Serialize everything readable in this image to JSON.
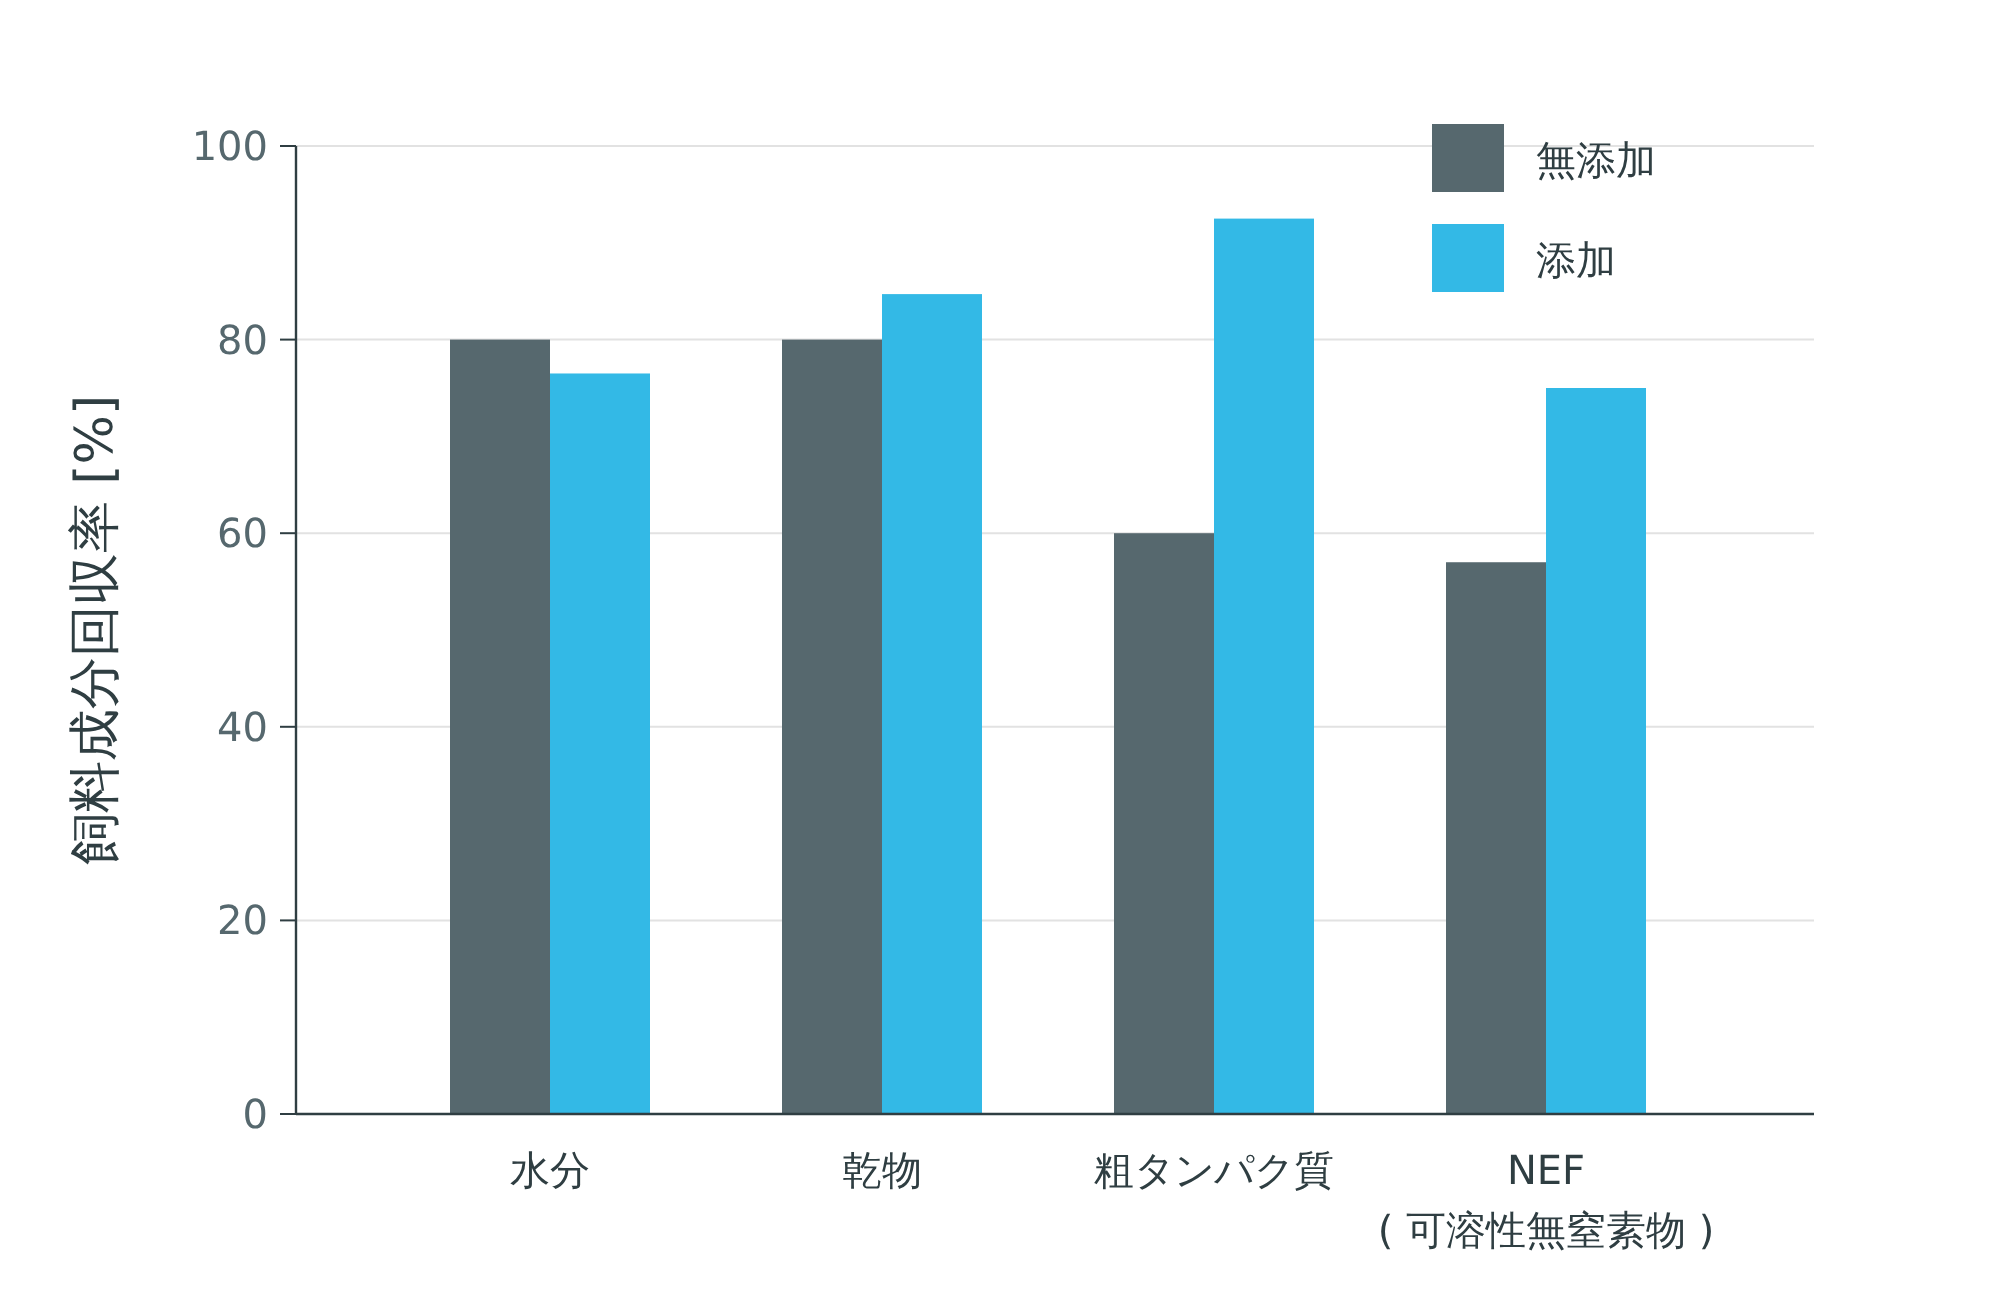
{
  "chart_data": {
    "type": "bar",
    "categories": [
      "水分",
      "乾物",
      "粗タンパク質",
      "NEF\n( 可溶性無窒素物 )"
    ],
    "series": [
      {
        "name": "無添加",
        "color": "#56686e",
        "values": [
          80,
          80,
          60,
          57
        ]
      },
      {
        "name": "添加",
        "color": "#33b9e6",
        "values": [
          76.5,
          84.7,
          92.5,
          75
        ]
      }
    ],
    "ylabel": "飼料成分回収率 [%]",
    "ylim": [
      0,
      100
    ],
    "yticks": [
      0,
      20,
      40,
      60,
      80,
      100
    ],
    "grid": "y",
    "legend": "top right"
  }
}
